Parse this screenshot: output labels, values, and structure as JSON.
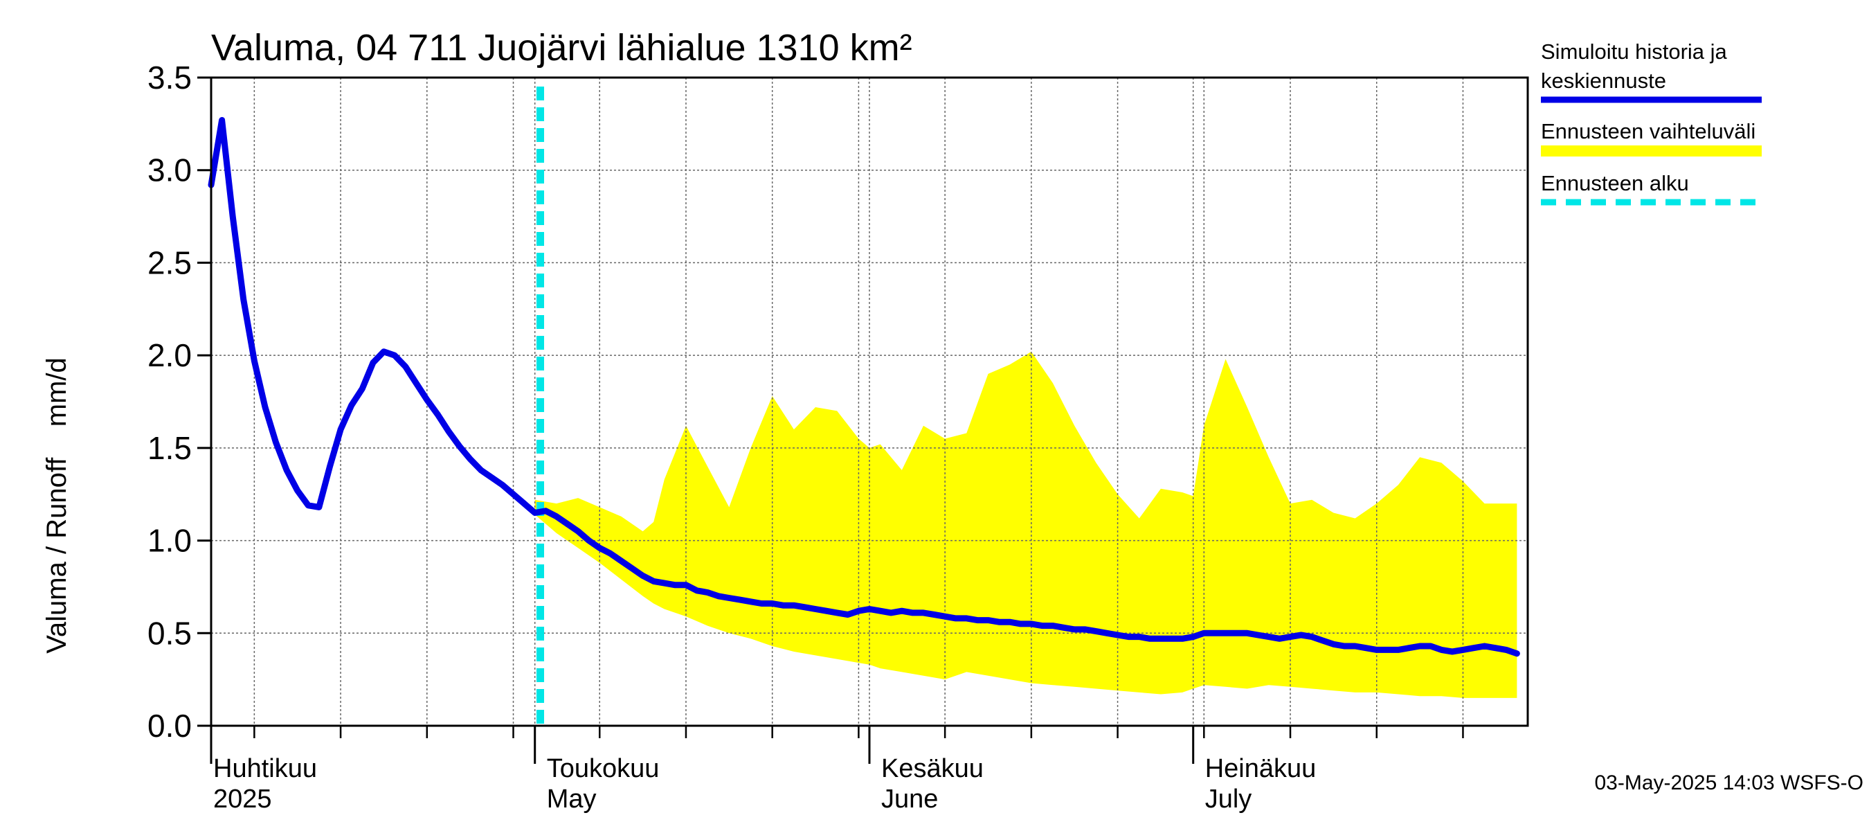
{
  "chart_data": {
    "type": "line",
    "title": "Valuma, 04 711 Juojärvi lähialue 1310 km²",
    "ylabel": "Valuma / Runoff    mm/d",
    "ylim": [
      0,
      3.5
    ],
    "yticks": [
      "0.0",
      "0.5",
      "1.0",
      "1.5",
      "2.0",
      "2.5",
      "3.0",
      "3.5"
    ],
    "x_start": "2025-03-31",
    "x_end": "2025-08-01",
    "forecast_start": "2025-05-01",
    "months": [
      {
        "label": "Huhtikuu",
        "label2": "2025",
        "day": 0
      },
      {
        "label": "Toukokuu",
        "label2": "May",
        "day": 30
      },
      {
        "label": "Kesäkuu",
        "label2": "June",
        "day": 61
      },
      {
        "label": "Heinäkuu",
        "label2": "July",
        "day": 91
      }
    ],
    "series": [
      {
        "name": "Simuloitu historia ja keskiennuste",
        "color": "#0000e6",
        "x": [
          0,
          1,
          2,
          3,
          4,
          5,
          6,
          7,
          8,
          9,
          10,
          11,
          12,
          13,
          14,
          15,
          16,
          17,
          18,
          19,
          20,
          21,
          22,
          23,
          24,
          25,
          26,
          27,
          28,
          29,
          30,
          31,
          32,
          33,
          34,
          35,
          36,
          37,
          38,
          39,
          40,
          41,
          42,
          43,
          44,
          45,
          46,
          47,
          48,
          49,
          50,
          51,
          52,
          53,
          54,
          55,
          56,
          57,
          58,
          59,
          60,
          61,
          62,
          63,
          64,
          65,
          66,
          67,
          68,
          69,
          70,
          71,
          72,
          73,
          74,
          75,
          76,
          77,
          78,
          79,
          80,
          81,
          82,
          83,
          84,
          85,
          86,
          87,
          88,
          89,
          90,
          91,
          92,
          93,
          94,
          95,
          96,
          97,
          98,
          99,
          100,
          101,
          102,
          103,
          104,
          105,
          106,
          107,
          108,
          109,
          110,
          111,
          112,
          113,
          114,
          115,
          116,
          117,
          118,
          119,
          120,
          121
        ],
        "values": [
          2.92,
          3.27,
          2.75,
          2.3,
          1.97,
          1.72,
          1.53,
          1.38,
          1.27,
          1.19,
          1.18,
          1.4,
          1.6,
          1.73,
          1.82,
          1.96,
          2.02,
          2.0,
          1.94,
          1.85,
          1.76,
          1.68,
          1.59,
          1.51,
          1.44,
          1.38,
          1.34,
          1.3,
          1.25,
          1.2,
          1.15,
          1.16,
          1.13,
          1.09,
          1.05,
          1.0,
          0.96,
          0.93,
          0.89,
          0.85,
          0.81,
          0.78,
          0.77,
          0.76,
          0.76,
          0.73,
          0.72,
          0.7,
          0.69,
          0.68,
          0.67,
          0.66,
          0.66,
          0.65,
          0.65,
          0.64,
          0.63,
          0.62,
          0.61,
          0.6,
          0.62,
          0.63,
          0.62,
          0.61,
          0.62,
          0.61,
          0.61,
          0.6,
          0.59,
          0.58,
          0.58,
          0.57,
          0.57,
          0.56,
          0.56,
          0.55,
          0.55,
          0.54,
          0.54,
          0.53,
          0.52,
          0.52,
          0.51,
          0.5,
          0.49,
          0.48,
          0.48,
          0.47,
          0.47,
          0.47,
          0.47,
          0.48,
          0.5,
          0.5,
          0.5,
          0.5,
          0.5,
          0.49,
          0.48,
          0.47,
          0.48,
          0.49,
          0.48,
          0.46,
          0.44,
          0.43,
          0.43,
          0.42,
          0.41,
          0.41,
          0.41,
          0.42,
          0.43,
          0.43,
          0.41,
          0.4,
          0.41,
          0.42,
          0.43,
          0.42,
          0.41,
          0.39
        ]
      },
      {
        "name": "Ennusteen vaihteluväli",
        "color": "#ffff00",
        "x": [
          30,
          32,
          34,
          36,
          38,
          40,
          41,
          42,
          44,
          46,
          48,
          50,
          52,
          54,
          56,
          58,
          60,
          61,
          62,
          64,
          66,
          68,
          70,
          72,
          74,
          76,
          78,
          80,
          82,
          84,
          86,
          88,
          90,
          91,
          92,
          94,
          96,
          98,
          100,
          102,
          104,
          106,
          108,
          110,
          112,
          114,
          116,
          118,
          120,
          121
        ],
        "upper": [
          1.22,
          1.2,
          1.23,
          1.18,
          1.13,
          1.05,
          1.1,
          1.33,
          1.62,
          1.4,
          1.18,
          1.5,
          1.78,
          1.6,
          1.72,
          1.7,
          1.55,
          1.5,
          1.52,
          1.38,
          1.62,
          1.55,
          1.58,
          1.9,
          1.95,
          2.02,
          1.85,
          1.62,
          1.42,
          1.25,
          1.12,
          1.28,
          1.26,
          1.24,
          1.62,
          1.98,
          1.72,
          1.45,
          1.2,
          1.22,
          1.15,
          1.12,
          1.2,
          1.3,
          1.45,
          1.42,
          1.32,
          1.2,
          1.2,
          1.2
        ],
        "lower": [
          1.14,
          1.04,
          0.96,
          0.88,
          0.79,
          0.7,
          0.66,
          0.63,
          0.59,
          0.54,
          0.5,
          0.47,
          0.43,
          0.4,
          0.38,
          0.36,
          0.34,
          0.33,
          0.31,
          0.29,
          0.27,
          0.25,
          0.29,
          0.27,
          0.25,
          0.23,
          0.22,
          0.21,
          0.2,
          0.19,
          0.18,
          0.17,
          0.18,
          0.2,
          0.22,
          0.21,
          0.2,
          0.22,
          0.21,
          0.2,
          0.19,
          0.18,
          0.18,
          0.17,
          0.16,
          0.16,
          0.15,
          0.15,
          0.15,
          0.15
        ]
      },
      {
        "name": "Ennusteen alku",
        "color": "#00e6e6"
      }
    ],
    "legend": {
      "position": "right",
      "entries": [
        {
          "line1": "Simuloitu historia ja",
          "line2": "keskiennuste",
          "color": "#0000e6",
          "style": "solid"
        },
        {
          "line1": "Ennusteen vaihteluväli",
          "line2": "",
          "color": "#ffff00",
          "style": "solid"
        },
        {
          "line1": "Ennusteen alku",
          "line2": "",
          "color": "#00e6e6",
          "style": "dashed"
        }
      ]
    },
    "timestamp": "03-May-2025 14:03 WSFS-O"
  }
}
